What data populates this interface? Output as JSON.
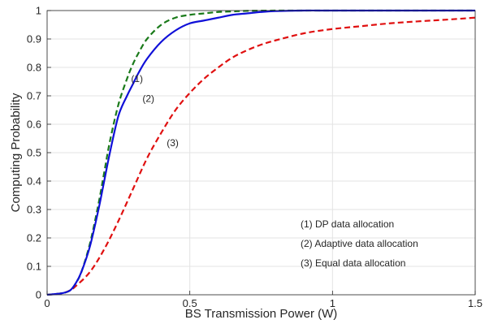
{
  "chart_data": {
    "type": "line",
    "title": "",
    "xlabel": "BS Transmission Power (W)",
    "ylabel": "Computing Probability",
    "xlim": [
      0,
      1.5
    ],
    "ylim": [
      0,
      1
    ],
    "xticks": [
      0,
      0.5,
      1,
      1.5
    ],
    "xtick_labels": [
      "0",
      "0.5",
      "1",
      "1.5"
    ],
    "yticks": [
      0,
      0.1,
      0.2,
      0.3,
      0.4,
      0.5,
      0.6,
      0.7,
      0.8,
      0.9,
      1
    ],
    "ytick_labels": [
      "0",
      "0.1",
      "0.2",
      "0.3",
      "0.4",
      "0.5",
      "0.6",
      "0.7",
      "0.8",
      "0.9",
      "1"
    ],
    "grid": true,
    "legend": {
      "placement": "bottom-right",
      "entries": [
        "(1) DP data allocation",
        "(2) Adaptive data allocation",
        "(3) Equal data allocation"
      ]
    },
    "annotations": [
      {
        "text": "(1)",
        "x": 0.315,
        "y": 0.76
      },
      {
        "text": "(2)",
        "x": 0.355,
        "y": 0.69
      },
      {
        "text": "(3)",
        "x": 0.44,
        "y": 0.535
      }
    ],
    "series": [
      {
        "id": "dp",
        "color": "#1a7a1a",
        "style": "dashed",
        "x": [
          0,
          0.05,
          0.08,
          0.1,
          0.12,
          0.15,
          0.18,
          0.2,
          0.22,
          0.25,
          0.28,
          0.3,
          0.32,
          0.35,
          0.4,
          0.45,
          0.5,
          0.55,
          0.6,
          0.65,
          0.7,
          0.8,
          0.9,
          1.0,
          1.2,
          1.5
        ],
        "y": [
          0,
          0.005,
          0.015,
          0.04,
          0.08,
          0.18,
          0.32,
          0.43,
          0.54,
          0.67,
          0.76,
          0.81,
          0.85,
          0.9,
          0.95,
          0.975,
          0.985,
          0.99,
          0.995,
          0.997,
          0.999,
          1,
          1,
          1,
          1,
          1
        ]
      },
      {
        "id": "adaptive",
        "color": "#1010d8",
        "style": "solid",
        "x": [
          0,
          0.05,
          0.08,
          0.1,
          0.12,
          0.15,
          0.18,
          0.2,
          0.22,
          0.25,
          0.28,
          0.3,
          0.32,
          0.35,
          0.4,
          0.45,
          0.5,
          0.55,
          0.6,
          0.65,
          0.7,
          0.75,
          0.8,
          0.9,
          1.0,
          1.2,
          1.5
        ],
        "y": [
          0,
          0.005,
          0.015,
          0.04,
          0.08,
          0.17,
          0.3,
          0.4,
          0.5,
          0.63,
          0.7,
          0.74,
          0.78,
          0.83,
          0.89,
          0.93,
          0.955,
          0.965,
          0.975,
          0.985,
          0.99,
          0.995,
          0.998,
          1,
          1,
          1,
          1
        ]
      },
      {
        "id": "equal",
        "color": "#e01010",
        "style": "dashed",
        "x": [
          0,
          0.05,
          0.08,
          0.1,
          0.15,
          0.2,
          0.25,
          0.3,
          0.35,
          0.4,
          0.45,
          0.5,
          0.55,
          0.6,
          0.65,
          0.7,
          0.75,
          0.8,
          0.9,
          1.0,
          1.1,
          1.2,
          1.3,
          1.4,
          1.5
        ],
        "y": [
          0,
          0.005,
          0.015,
          0.03,
          0.08,
          0.16,
          0.26,
          0.37,
          0.48,
          0.57,
          0.65,
          0.71,
          0.76,
          0.8,
          0.835,
          0.86,
          0.88,
          0.895,
          0.92,
          0.935,
          0.945,
          0.955,
          0.962,
          0.968,
          0.975
        ]
      }
    ]
  }
}
